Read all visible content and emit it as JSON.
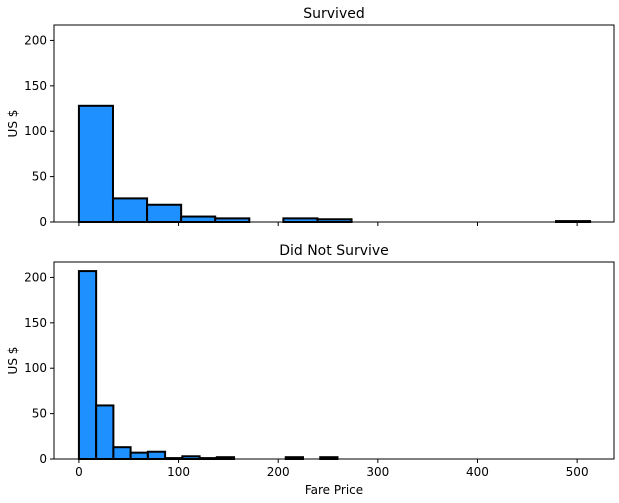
{
  "chart_data": [
    {
      "type": "bar",
      "title": "Survived",
      "xlabel": "",
      "ylabel": "US $",
      "xlim": [
        -25,
        537
      ],
      "ylim": [
        0,
        217
      ],
      "x_ticks": [
        0,
        100,
        200,
        300,
        400,
        500
      ],
      "x_tick_labels_visible": false,
      "y_ticks": [
        0,
        50,
        100,
        150,
        200
      ],
      "bin_width": 34.2,
      "bin_edges_start": 0,
      "values": [
        128,
        26,
        19,
        6,
        4,
        0,
        4,
        3,
        0,
        0,
        0,
        0,
        0,
        0,
        1
      ],
      "bar_color": "#1e90ff",
      "edge_color": "#000000",
      "grid": false
    },
    {
      "type": "bar",
      "title": "Did Not Survive",
      "xlabel": "Fare Price",
      "ylabel": "US $",
      "xlim": [
        -25,
        537
      ],
      "ylim": [
        0,
        217
      ],
      "x_ticks": [
        0,
        100,
        200,
        300,
        400,
        500
      ],
      "x_tick_labels_visible": true,
      "y_ticks": [
        0,
        50,
        100,
        150,
        200
      ],
      "bin_width": 17.3,
      "bin_edges_start": 0,
      "values": [
        207,
        59,
        13,
        7,
        8,
        1,
        3,
        1,
        2,
        0,
        0,
        0,
        2,
        0,
        2
      ],
      "bar_color": "#1e90ff",
      "edge_color": "#000000",
      "grid": false
    }
  ]
}
